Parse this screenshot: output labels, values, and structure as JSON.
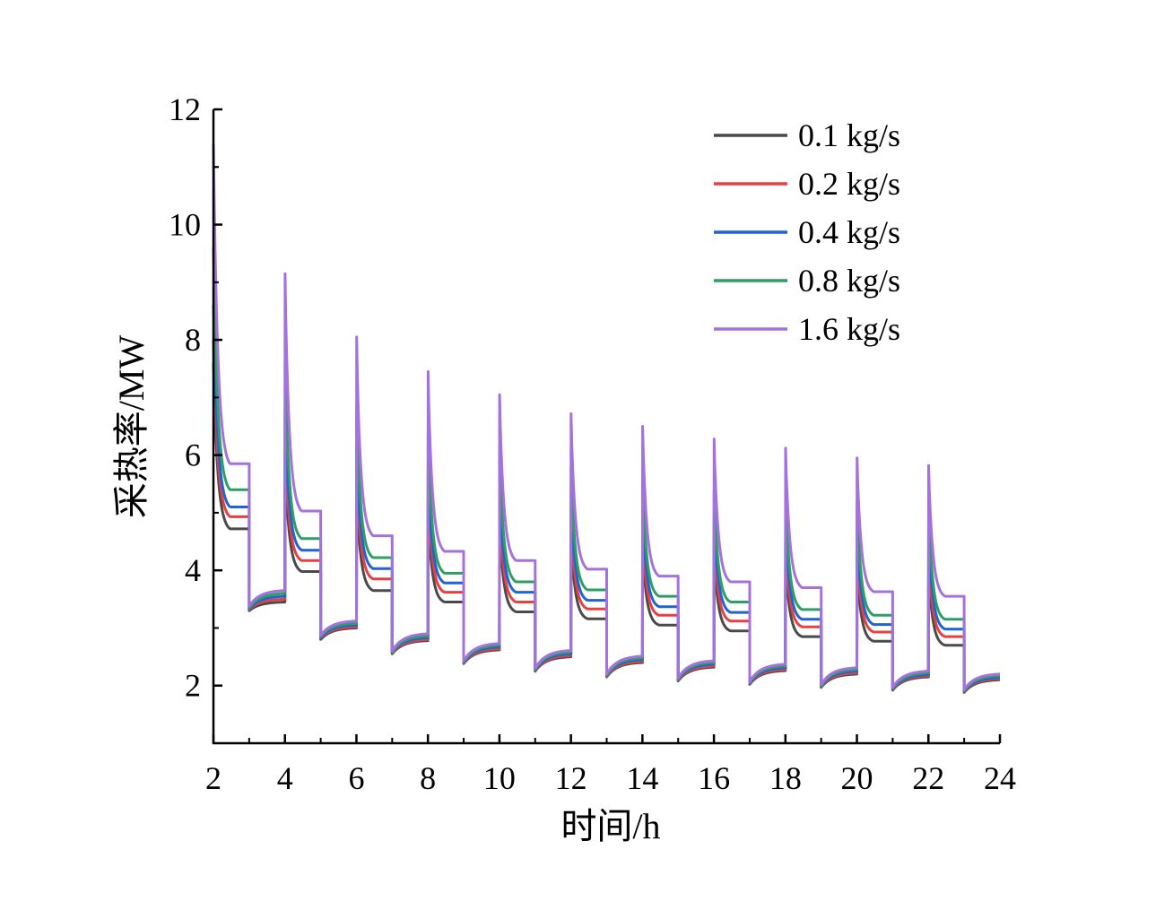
{
  "chart_data": {
    "type": "line",
    "title": "",
    "xlabel": "时间/h",
    "ylabel": "采热率/MW",
    "xlim": [
      2,
      24
    ],
    "ylim": [
      1,
      12
    ],
    "xticks": [
      "2",
      "4",
      "6",
      "8",
      "10",
      "12",
      "14",
      "16",
      "18",
      "20",
      "22",
      "24"
    ],
    "yticks": [
      "2",
      "4",
      "6",
      "8",
      "10",
      "12"
    ],
    "grid": false,
    "legend_position": "top-right",
    "cycle_note_free": true,
    "on_periods": [
      [
        2,
        3
      ],
      [
        4,
        5
      ],
      [
        6,
        7
      ],
      [
        8,
        9
      ],
      [
        10,
        11
      ],
      [
        12,
        13
      ],
      [
        14,
        15
      ],
      [
        16,
        17
      ],
      [
        18,
        19
      ],
      [
        20,
        21
      ],
      [
        22,
        23
      ]
    ],
    "off_periods": [
      [
        3,
        4
      ],
      [
        5,
        6
      ],
      [
        7,
        8
      ],
      [
        9,
        10
      ],
      [
        11,
        12
      ],
      [
        13,
        14
      ],
      [
        15,
        16
      ],
      [
        17,
        18
      ],
      [
        19,
        20
      ],
      [
        21,
        22
      ],
      [
        23,
        24
      ]
    ],
    "series": [
      {
        "name": "0.1 kg/s",
        "color": "#4a4a4a",
        "on_peak": [
          7.6,
          5.9,
          5.4,
          5.0,
          4.8,
          4.6,
          4.4,
          4.3,
          4.2,
          4.1,
          4.0
        ],
        "on_end": [
          4.72,
          3.98,
          3.65,
          3.45,
          3.28,
          3.16,
          3.05,
          2.95,
          2.85,
          2.77,
          2.7
        ],
        "off_start": [
          3.3,
          2.8,
          2.55,
          2.38,
          2.25,
          2.15,
          2.08,
          2.02,
          1.97,
          1.92,
          1.88
        ],
        "off_end": [
          3.45,
          3.0,
          2.78,
          2.62,
          2.5,
          2.4,
          2.32,
          2.26,
          2.2,
          2.15,
          2.1
        ]
      },
      {
        "name": "0.2 kg/s",
        "color": "#e84040",
        "on_peak": [
          8.0,
          6.3,
          5.8,
          5.4,
          5.1,
          4.9,
          4.7,
          4.6,
          4.5,
          4.4,
          4.3
        ],
        "on_end": [
          4.93,
          4.17,
          3.85,
          3.62,
          3.45,
          3.33,
          3.22,
          3.12,
          3.02,
          2.93,
          2.85
        ],
        "off_start": [
          3.32,
          2.82,
          2.56,
          2.39,
          2.26,
          2.16,
          2.09,
          2.03,
          1.98,
          1.93,
          1.89
        ],
        "off_end": [
          3.5,
          3.02,
          2.8,
          2.64,
          2.52,
          2.42,
          2.34,
          2.28,
          2.22,
          2.17,
          2.12
        ]
      },
      {
        "name": "0.4 kg/s",
        "color": "#1f64d6",
        "on_peak": [
          8.6,
          6.8,
          6.2,
          5.8,
          5.5,
          5.3,
          5.1,
          5.0,
          4.9,
          4.8,
          4.7
        ],
        "on_end": [
          5.1,
          4.35,
          4.03,
          3.78,
          3.62,
          3.48,
          3.37,
          3.27,
          3.15,
          3.06,
          2.98
        ],
        "off_start": [
          3.33,
          2.83,
          2.57,
          2.4,
          2.27,
          2.17,
          2.1,
          2.04,
          1.99,
          1.94,
          1.9
        ],
        "off_end": [
          3.55,
          3.05,
          2.83,
          2.67,
          2.55,
          2.45,
          2.37,
          2.31,
          2.25,
          2.19,
          2.14
        ]
      },
      {
        "name": "0.8 kg/s",
        "color": "#2e9e62",
        "on_peak": [
          9.6,
          7.6,
          6.9,
          6.4,
          6.1,
          5.8,
          5.6,
          5.4,
          5.3,
          5.2,
          5.1
        ],
        "on_end": [
          5.4,
          4.55,
          4.22,
          3.95,
          3.8,
          3.66,
          3.55,
          3.45,
          3.32,
          3.22,
          3.15
        ],
        "off_start": [
          3.35,
          2.85,
          2.58,
          2.41,
          2.28,
          2.18,
          2.11,
          2.05,
          2.0,
          1.95,
          1.91
        ],
        "off_end": [
          3.6,
          3.08,
          2.86,
          2.7,
          2.58,
          2.48,
          2.4,
          2.34,
          2.28,
          2.22,
          2.17
        ]
      },
      {
        "name": "1.6 kg/s",
        "color": "#a571dd",
        "on_peak": [
          11.4,
          9.15,
          8.05,
          7.45,
          7.05,
          6.72,
          6.5,
          6.28,
          6.12,
          5.95,
          5.82
        ],
        "on_end": [
          5.85,
          5.03,
          4.6,
          4.33,
          4.17,
          4.02,
          3.9,
          3.8,
          3.7,
          3.63,
          3.55
        ],
        "off_start": [
          3.38,
          2.87,
          2.6,
          2.43,
          2.3,
          2.2,
          2.13,
          2.07,
          2.02,
          1.97,
          1.93
        ],
        "off_end": [
          3.65,
          3.12,
          2.9,
          2.73,
          2.61,
          2.51,
          2.43,
          2.37,
          2.31,
          2.25,
          2.2
        ]
      }
    ]
  }
}
